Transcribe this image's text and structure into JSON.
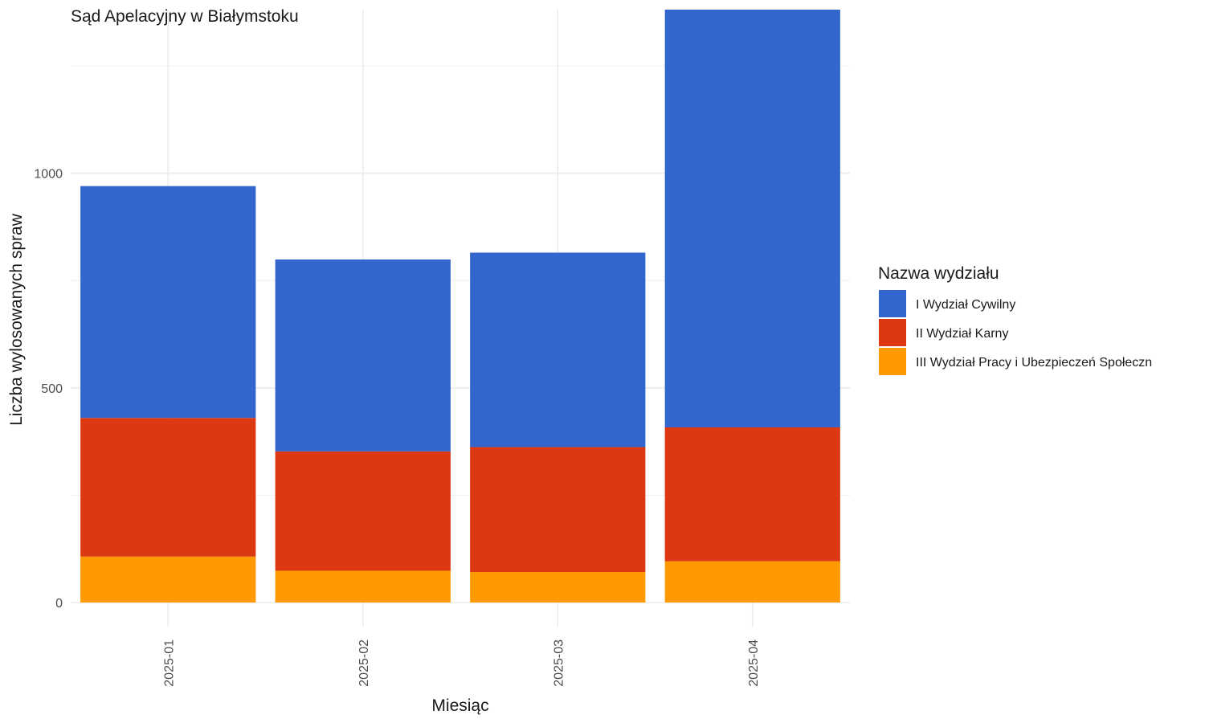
{
  "chart_data": {
    "type": "bar",
    "stacked": true,
    "title": "Sąd Apelacyjny w Białymstoku",
    "xlabel": "Miesiąc",
    "ylabel": "Liczba wylosowanych spraw",
    "categories": [
      "2025-01",
      "2025-02",
      "2025-03",
      "2025-04"
    ],
    "series": [
      {
        "name": "III Wydział Pracy i Ubezpieczeń Społeczn",
        "color": "#FF9900",
        "values": [
          107,
          74,
          71,
          96
        ]
      },
      {
        "name": "II Wydział Karny",
        "color": "#DC3912",
        "values": [
          323,
          278,
          291,
          312
        ]
      },
      {
        "name": "I Wydział Cywilny",
        "color": "#3366CC",
        "values": [
          540,
          447,
          453,
          973
        ]
      }
    ],
    "ylim": [
      0,
      1381
    ],
    "yticks": [
      0,
      500,
      1000
    ],
    "legend": {
      "title": "Nazwa wydziału",
      "position": "right",
      "order": [
        "I Wydział Cywilny",
        "II Wydział Karny",
        "III Wydział Pracy i Ubezpieczeń Społeczn"
      ]
    },
    "grid": true,
    "x_tick_rotation": 90
  }
}
